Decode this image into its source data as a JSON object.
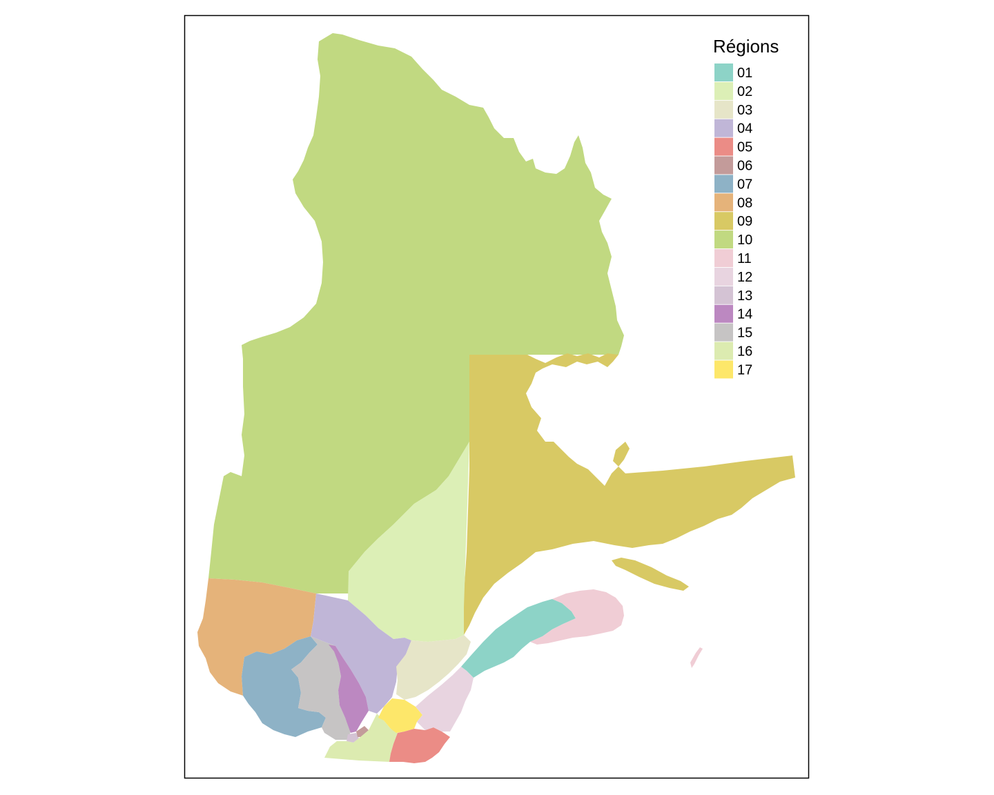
{
  "legend": {
    "title": "Régions",
    "entries": [
      {
        "code": "01",
        "color": "#8dd3c7"
      },
      {
        "code": "02",
        "color": "#dcefb6"
      },
      {
        "code": "03",
        "color": "#e6e5c8"
      },
      {
        "code": "04",
        "color": "#c0b6d7"
      },
      {
        "code": "05",
        "color": "#eb8c86"
      },
      {
        "code": "06",
        "color": "#c39b9a"
      },
      {
        "code": "07",
        "color": "#8eb2c6"
      },
      {
        "code": "08",
        "color": "#e5b37a"
      },
      {
        "code": "09",
        "color": "#d8c964"
      },
      {
        "code": "10",
        "color": "#c1d981"
      },
      {
        "code": "11",
        "color": "#f0cdd5"
      },
      {
        "code": "12",
        "color": "#e8d4e0"
      },
      {
        "code": "13",
        "color": "#d4c3d4"
      },
      {
        "code": "14",
        "color": "#bc88c1"
      },
      {
        "code": "15",
        "color": "#c6c4c4"
      },
      {
        "code": "16",
        "color": "#dcebb0"
      },
      {
        "code": "17",
        "color": "#fde76a"
      }
    ]
  }
}
